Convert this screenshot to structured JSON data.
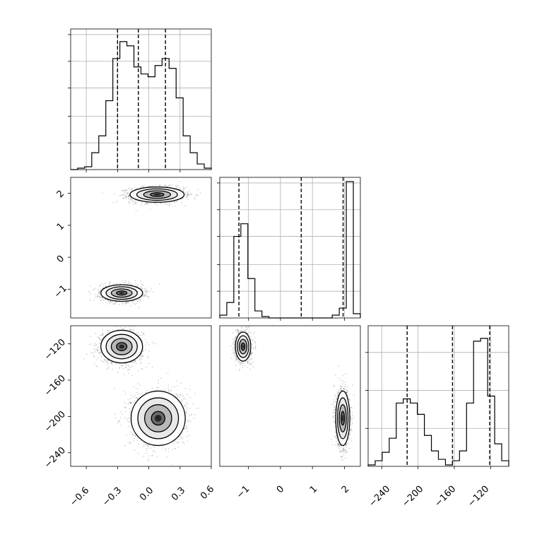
{
  "chart_data": [
    {
      "id": "hist_p0",
      "type": "histogram",
      "title": "",
      "xlabel": "",
      "ylabel": "",
      "xlim": [
        -0.75,
        0.6
      ],
      "ylim": [
        0,
        1.0
      ],
      "grid": true,
      "bins": {
        "start": -0.75,
        "width": 0.0675,
        "values": [
          0.0,
          0.01,
          0.02,
          0.12,
          0.24,
          0.49,
          0.79,
          0.91,
          0.88,
          0.73,
          0.68,
          0.66,
          0.74,
          0.79,
          0.72,
          0.51,
          0.24,
          0.12,
          0.04,
          0.01
        ]
      },
      "quantiles": [
        -0.3,
        -0.1,
        0.16
      ],
      "x_ticks": [],
      "y_ticks": []
    },
    {
      "id": "hist_p1",
      "type": "histogram",
      "title": "",
      "xlabel": "",
      "ylabel": "",
      "xlim": [
        -1.9,
        2.5
      ],
      "ylim": [
        0,
        1.0
      ],
      "grid": true,
      "bins": {
        "start": -1.9,
        "width": 0.22,
        "values": [
          0.02,
          0.11,
          0.58,
          0.67,
          0.28,
          0.05,
          0.01,
          0.0,
          0.0,
          0.0,
          0.0,
          0.0,
          0.0,
          0.0,
          0.0,
          0.0,
          0.02,
          0.07,
          0.97,
          0.03
        ]
      },
      "quantiles": [
        -1.3,
        0.65,
        1.96
      ],
      "x_ticks": [],
      "y_ticks": []
    },
    {
      "id": "hist_p2",
      "type": "histogram",
      "title": "",
      "xlabel": "",
      "ylabel": "",
      "xlim": [
        -255,
        -100
      ],
      "ylim": [
        0,
        1.0
      ],
      "grid": true,
      "bins": {
        "start": -255,
        "width": 7.75,
        "values": [
          0.01,
          0.04,
          0.1,
          0.2,
          0.45,
          0.48,
          0.45,
          0.37,
          0.22,
          0.11,
          0.05,
          0.01,
          0.04,
          0.11,
          0.45,
          0.89,
          0.91,
          0.5,
          0.16,
          0.04
        ]
      },
      "quantiles": [
        -212,
        -162,
        -121
      ],
      "x_ticks": [
        "−240",
        "−200",
        "−160",
        "−120"
      ],
      "y_ticks": []
    },
    {
      "id": "scatter_p0_p1",
      "type": "scatter",
      "title": "",
      "xlabel": "",
      "ylabel": "",
      "xlim": [
        -0.75,
        0.6
      ],
      "ylim": [
        -1.9,
        2.5
      ],
      "clusters": [
        {
          "mx": 0.08,
          "my": 1.96,
          "sx": 0.13,
          "sy": 0.12,
          "n": 1700
        },
        {
          "mx": -0.26,
          "my": -1.12,
          "sx": 0.1,
          "sy": 0.13,
          "n": 1400
        }
      ],
      "y_ticks": [
        "−1",
        "0",
        "1",
        "2"
      ],
      "x_ticks": []
    },
    {
      "id": "scatter_p0_p2",
      "type": "scatter",
      "title": "",
      "xlabel": "",
      "ylabel": "",
      "xlim": [
        -0.75,
        0.6
      ],
      "ylim": [
        -255,
        -100
      ],
      "clusters": [
        {
          "mx": -0.26,
          "my": -123,
          "sx": 0.1,
          "sy": 9,
          "n": 1400
        },
        {
          "mx": 0.09,
          "my": -202,
          "sx": 0.13,
          "sy": 15,
          "n": 1700
        }
      ],
      "x_ticks": [
        "−0.6",
        "−0.3",
        "0.0",
        "0.3",
        "0.6"
      ],
      "y_ticks": [
        "−240",
        "−200",
        "−160",
        "−120"
      ]
    },
    {
      "id": "scatter_p1_p2",
      "type": "scatter",
      "title": "",
      "xlabel": "",
      "ylabel": "",
      "xlim": [
        -1.9,
        2.5
      ],
      "ylim": [
        -255,
        -100
      ],
      "clusters": [
        {
          "mx": -1.17,
          "my": -123,
          "sx": 0.12,
          "sy": 8,
          "n": 1400
        },
        {
          "mx": 1.95,
          "my": -202,
          "sx": 0.11,
          "sy": 15,
          "n": 1700
        }
      ],
      "x_ticks": [
        "−1",
        "0",
        "1",
        "2"
      ],
      "y_ticks": []
    }
  ]
}
